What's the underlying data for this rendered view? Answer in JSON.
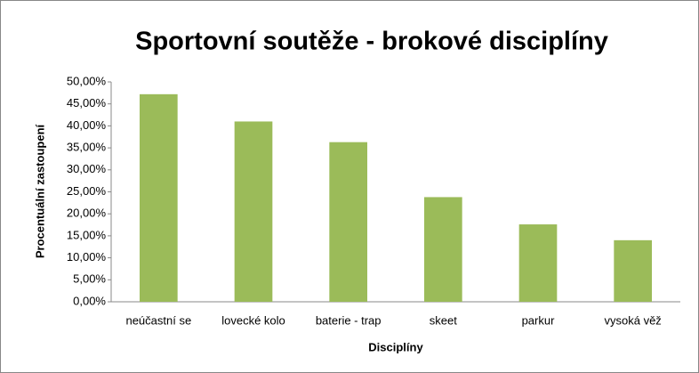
{
  "chart_data": {
    "type": "bar",
    "title": "Sportovní soutěže - brokové disciplíny",
    "x_label": "Disciplíny",
    "y_label": "Procentuální zastoupení",
    "categories": [
      "neúčastní se",
      "lovecké kolo",
      "baterie - trap",
      "skeet",
      "parkur",
      "vysoká věž"
    ],
    "values": [
      47.2,
      41.0,
      36.3,
      23.8,
      17.6,
      14.0
    ],
    "color": "#9bbb59",
    "ylim": [
      0,
      50
    ],
    "yticks": [
      {
        "value": 0,
        "label": "0,00%"
      },
      {
        "value": 5,
        "label": "5,00%"
      },
      {
        "value": 10,
        "label": "10,00%"
      },
      {
        "value": 15,
        "label": "15,00%"
      },
      {
        "value": 20,
        "label": "20,00%"
      },
      {
        "value": 25,
        "label": "25,00%"
      },
      {
        "value": 30,
        "label": "30,00%"
      },
      {
        "value": 35,
        "label": "35,00%"
      },
      {
        "value": 40,
        "label": "40,00%"
      },
      {
        "value": 45,
        "label": "45,00%"
      },
      {
        "value": 50,
        "label": "50,00%"
      }
    ],
    "grid": false
  }
}
